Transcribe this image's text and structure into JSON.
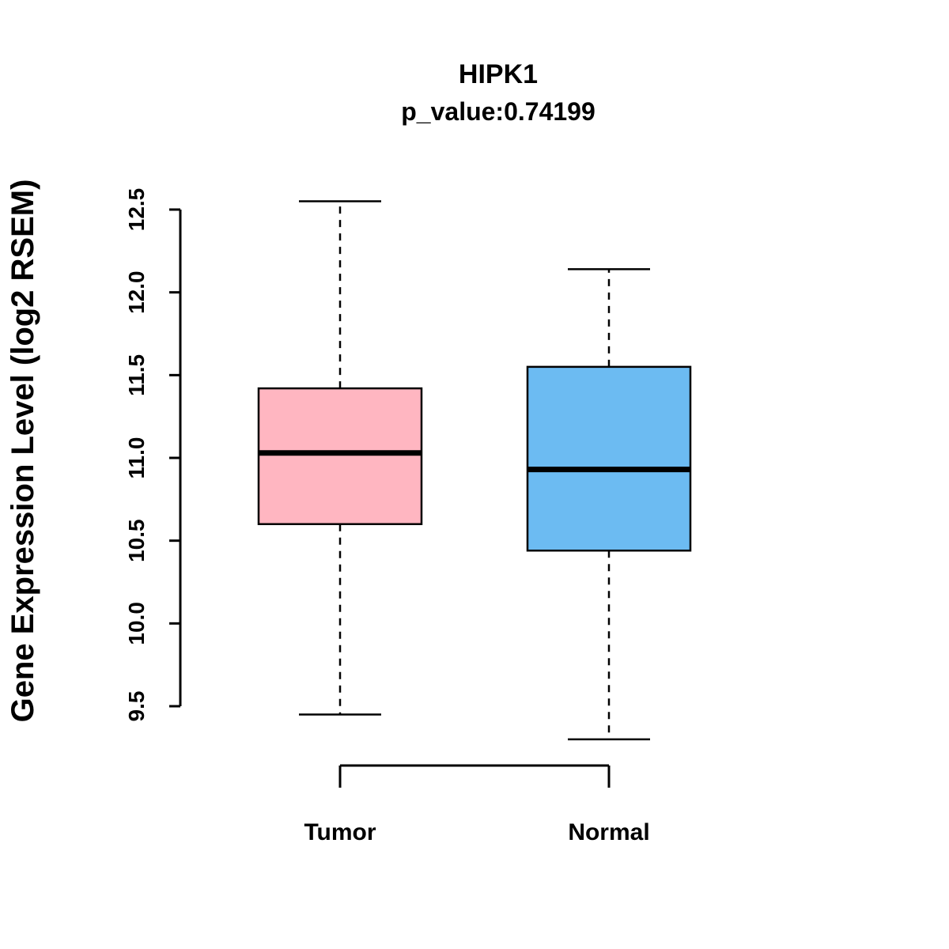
{
  "title": "HIPK1",
  "subtitle": "p_value:0.74199",
  "y_axis": {
    "label": "Gene Expression Level (log2 RSEM)",
    "ticks": [
      9.5,
      10.0,
      10.5,
      11.0,
      11.5,
      12.0,
      12.5
    ]
  },
  "chart_data": {
    "type": "boxplot",
    "title": "HIPK1",
    "subtitle": "p_value:0.74199",
    "ylabel": "Gene Expression Level (log2 RSEM)",
    "ylim": [
      9.5,
      12.5
    ],
    "categories": [
      "Tumor",
      "Normal"
    ],
    "series": [
      {
        "name": "Tumor",
        "min": 9.45,
        "q1": 10.6,
        "median": 11.03,
        "q3": 11.42,
        "max": 12.55,
        "color": "#FFB6C1"
      },
      {
        "name": "Normal",
        "min": 9.3,
        "q1": 10.44,
        "median": 10.93,
        "q3": 11.55,
        "max": 12.14,
        "color": "#6CBBF2"
      }
    ],
    "colors": {
      "tumor_box": "#FFB6C1",
      "normal_box": "#6CBBF2",
      "stroke": "#000000",
      "background": "#FFFFFF"
    },
    "grid": false,
    "legend": "none"
  }
}
